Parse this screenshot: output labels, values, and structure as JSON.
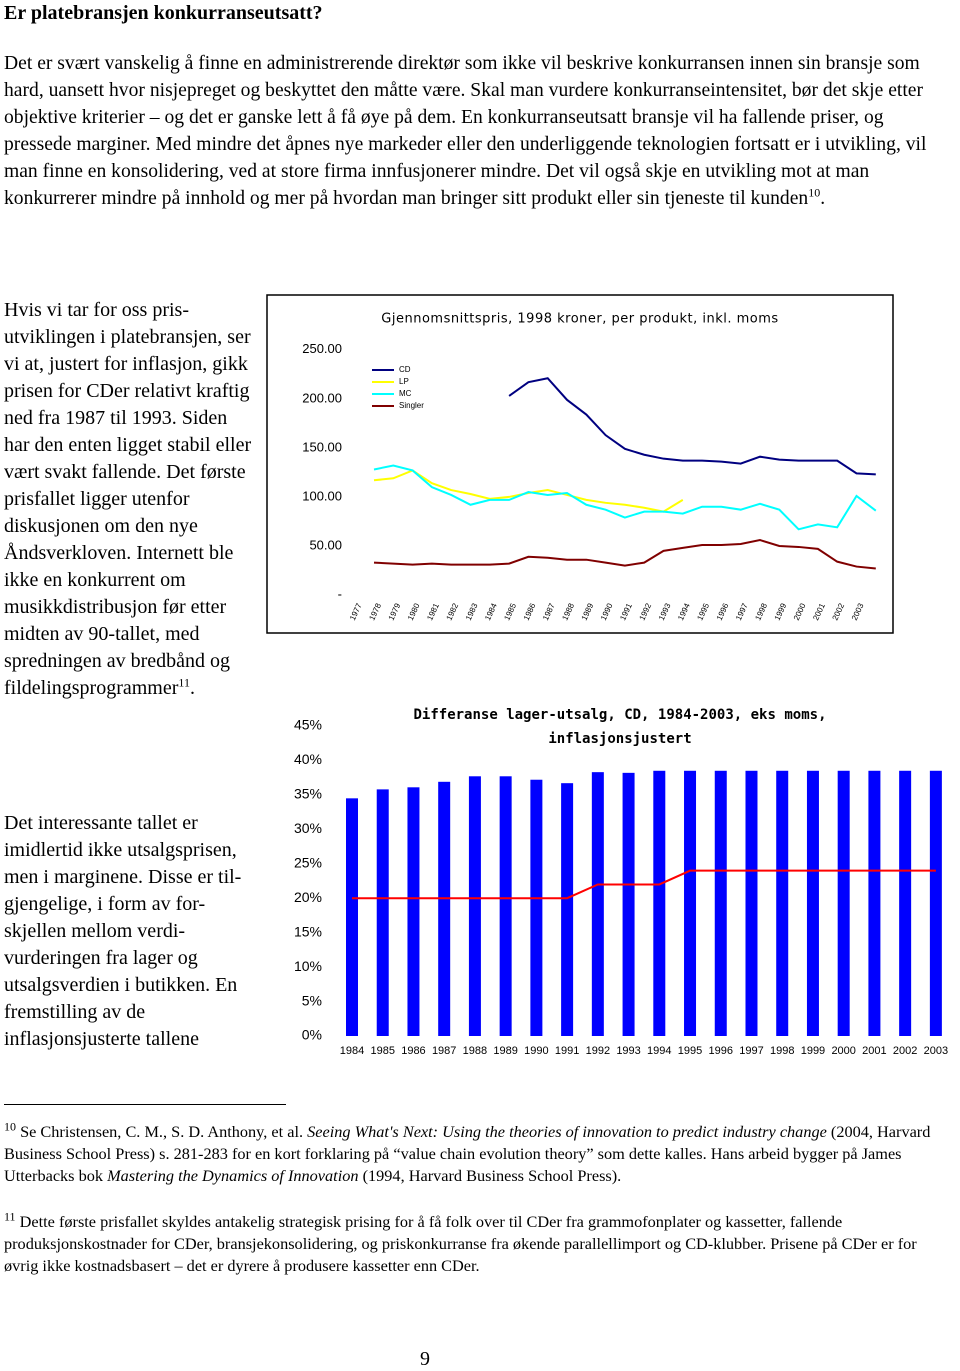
{
  "heading": "Er platebransjen konkurranseutsatt?",
  "intro": {
    "text": "Det er svært vanskelig å finne en administrerende direktør som ikke vil beskrive konkurransen innen sin bransje som hard, uansett hvor nisjepreget og beskyttet den måtte være. Skal man vurdere konkurranseintensitet, bør det skje etter objektive kriterier – og det er ganske lett å få øye på dem. En konkurranseutsatt bransje vil ha fallende priser, og pressede marginer. Med mindre det åpnes nye markeder eller den underliggende teknologien fortsatt er i utvikling, vil man finne en konsolidering, ved at store firma innfusjonerer mindre. Det vil også skje en utvikling mot at man konkurrerer mindre på innhold og mer på hvordan man bringer sitt produkt eller sin tjeneste til kunden",
    "note": "10",
    "end": "."
  },
  "column": [
    {
      "text": "Hvis vi tar for oss pris-utviklingen i platebransjen, ser vi at, justert for inflasjon, gikk prisen for CDer relativt kraftig ned fra 1987 til 1993. Siden har den enten ligget stabil eller vært svakt fallende. Det første prisfallet ligger utenfor diskusjonen om den nye Åndsverkloven. Internett ble ikke en konkurrent om musikkdistribusjon før etter midten av 90-tallet, med spredningen av bredbånd og fildelingsprogrammer",
      "note": "11",
      "end": "."
    },
    {
      "text": "Det interessante tallet er imidlertid ikke utsalgsprisen, men i marginene. Disse er til-gjengelige, i form av for-skjellen mellom verdi-vurderingen fra lager og utsalgsverdien i butikken. En fremstilling av de inflasjonsjusterte tallene"
    }
  ],
  "footnotes": [
    {
      "number": "10",
      "runs": [
        "Se Christensen, C. M., S. D. Anthony, et al. ",
        "Seeing What's Next: Using the theories of innovation to predict industry change",
        " (2004, Harvard Business School Press) s. 281-283 for en kort forklaring på “value chain evolution theory” som dette kalles. Hans arbeid bygger på James Utterbacks bok ",
        "Mastering the Dynamics of Innovation",
        " (1994, Harvard Business School Press)."
      ]
    },
    {
      "number": "11",
      "runs": [
        "Dette første prisfallet skyldes antakelig strategisk prising for å få folk over til CDer fra grammofonplater og kassetter, fallende produksjonskostnader for CDer, bransjekonsolidering, og priskonkurranse fra økende parallellimport og CD-klubber. Prisene på CDer er for øvrig ikke kostnadsbasert – det er dyrere å produsere kassetter enn CDer."
      ]
    }
  ],
  "page_number": "9",
  "chart_data": [
    {
      "type": "line",
      "title": "Gjennomsnittspris, 1998 kroner, per produkt, inkl. moms",
      "categories": [
        "1977",
        "1978",
        "1979",
        "1980",
        "1981",
        "1982",
        "1983",
        "1984",
        "1985",
        "1986",
        "1987",
        "1988",
        "1989",
        "1990",
        "1991",
        "1992",
        "1993",
        "1994",
        "1995",
        "1996",
        "1997",
        "1998",
        "1999",
        "2000",
        "2001",
        "2002",
        "2003"
      ],
      "series": [
        {
          "name": "CD",
          "color": "#000080",
          "values": [
            null,
            null,
            null,
            null,
            null,
            null,
            null,
            203,
            217,
            221,
            199,
            184,
            163,
            149,
            143,
            139,
            137,
            137,
            136,
            134,
            141,
            138,
            137,
            137,
            137,
            124,
            123
          ]
        },
        {
          "name": "LP",
          "color": "#ffff00",
          "values": [
            117,
            119,
            127,
            114,
            107,
            103,
            98,
            100,
            104,
            107,
            102,
            97,
            94,
            92,
            89,
            85,
            97,
            null,
            null,
            null,
            null,
            null,
            null,
            null,
            null,
            null,
            null
          ]
        },
        {
          "name": "MC",
          "color": "#00ffff",
          "values": [
            128,
            132,
            127,
            110,
            102,
            92,
            97,
            97,
            105,
            102,
            104,
            92,
            87,
            79,
            85,
            85,
            83,
            90,
            90,
            87,
            93,
            87,
            67,
            72,
            69,
            101,
            86
          ]
        },
        {
          "name": "Singler",
          "color": "#800000",
          "values": [
            33,
            32,
            31,
            32,
            31,
            31,
            31,
            32,
            39,
            38,
            36,
            36,
            33,
            30,
            33,
            45,
            48,
            51,
            51,
            52,
            56,
            50,
            49,
            47,
            34,
            29,
            27
          ]
        }
      ],
      "ylim": [
        0,
        260
      ],
      "yticks": [
        {
          "value": 0,
          "label": "-"
        },
        {
          "value": 50,
          "label": "50.00"
        },
        {
          "value": 100,
          "label": "100.00"
        },
        {
          "value": 150,
          "label": "150.00"
        },
        {
          "value": 200,
          "label": "200.00"
        },
        {
          "value": 250,
          "label": "250.00"
        }
      ],
      "grid": false,
      "legend": "upper left"
    },
    {
      "type": "bar",
      "title": "Differanse lager-utsalg, CD, 1984-2003, eks moms, inflasjonsjustert",
      "categories": [
        "1984",
        "1985",
        "1986",
        "1987",
        "1988",
        "1989",
        "1990",
        "1991",
        "1992",
        "1993",
        "1994",
        "1995",
        "1996",
        "1997",
        "1998",
        "1999",
        "2000",
        "2001",
        "2002",
        "2003"
      ],
      "series": [
        {
          "type": "bar",
          "color": "#0000ff",
          "values": [
            34.5,
            35.8,
            36.1,
            36.9,
            37.7,
            37.7,
            37.2,
            36.7,
            38.3,
            38.2,
            38.5,
            38.5,
            38.5,
            38.5,
            38.5,
            38.5,
            38.5,
            38.5,
            38.5,
            38.5
          ]
        },
        {
          "type": "line",
          "color": "#ff0000",
          "values": [
            20,
            20,
            20,
            20,
            20,
            20,
            20,
            20,
            22,
            22,
            22,
            24,
            24,
            24,
            24,
            24,
            24,
            24,
            24,
            24
          ]
        }
      ],
      "ylim": [
        0,
        45
      ],
      "yticks": [
        {
          "value": 0,
          "label": "0%"
        },
        {
          "value": 5,
          "label": "5%"
        },
        {
          "value": 10,
          "label": "10%"
        },
        {
          "value": 15,
          "label": "15%"
        },
        {
          "value": 20,
          "label": "20%"
        },
        {
          "value": 25,
          "label": "25%"
        },
        {
          "value": 30,
          "label": "30%"
        },
        {
          "value": 35,
          "label": "35%"
        },
        {
          "value": 40,
          "label": "40%"
        },
        {
          "value": 45,
          "label": "45%"
        }
      ],
      "grid": false
    }
  ]
}
